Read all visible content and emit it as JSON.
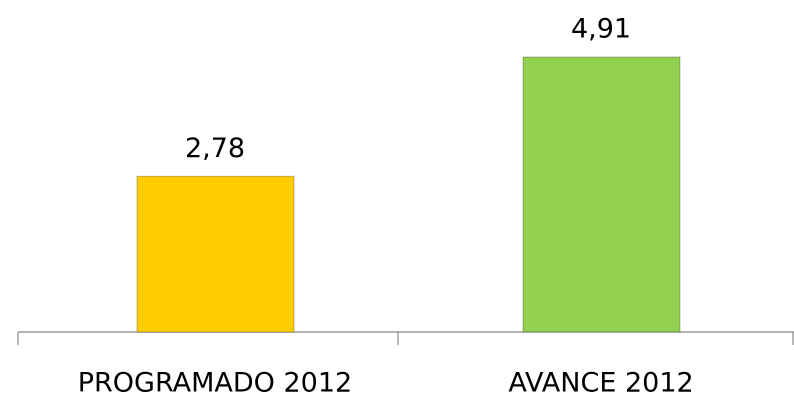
{
  "chart_data": {
    "type": "bar",
    "categories": [
      "PROGRAMADO 2012",
      "AVANCE 2012"
    ],
    "values": [
      2.78,
      4.91
    ],
    "value_labels": [
      "2,78",
      "4,91"
    ],
    "colors": [
      "#ffcc00",
      "#92d050"
    ],
    "grid": false
  }
}
